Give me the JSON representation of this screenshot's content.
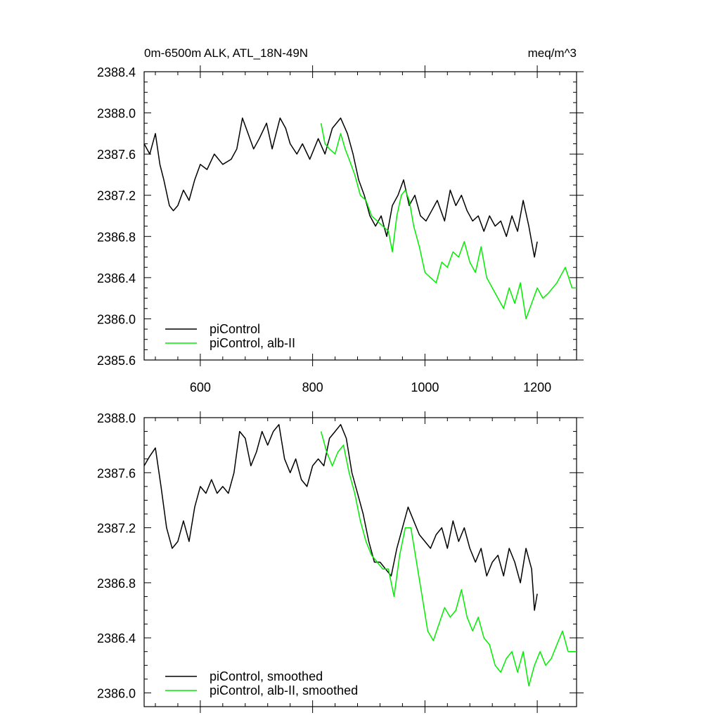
{
  "header": {
    "title": "0m-6500m ALK, ATL_18N-49N",
    "units": "meq/m^3"
  },
  "colors": {
    "piControl": "#000000",
    "alb_II": "#00ee00"
  },
  "chart_data": [
    {
      "type": "line",
      "xlim": [
        500,
        1270
      ],
      "ylim": [
        2385.6,
        2388.4
      ],
      "xticks": [
        600,
        800,
        1000,
        1200
      ],
      "yticks": [
        2385.6,
        2386.0,
        2386.4,
        2386.8,
        2387.2,
        2387.6,
        2388.0,
        2388.4
      ],
      "ytick_labels": [
        "2385.6",
        "2386.0",
        "2386.4",
        "2386.8",
        "2387.2",
        "2387.6",
        "2388.0",
        "2388.4"
      ],
      "xtick_labels": [
        "600",
        "800",
        "1000",
        "1200"
      ],
      "legend_position": "bottom-left",
      "grid": false,
      "series": [
        {
          "name": "piControl",
          "color": "#000000",
          "x": [
            500,
            510,
            520,
            528,
            535,
            545,
            552,
            560,
            570,
            580,
            590,
            600,
            612,
            625,
            640,
            655,
            665,
            675,
            685,
            695,
            705,
            718,
            728,
            742,
            752,
            760,
            772,
            782,
            795,
            810,
            822,
            835,
            850,
            862,
            872,
            882,
            892,
            902,
            912,
            922,
            932,
            942,
            952,
            962,
            972,
            982,
            992,
            1002,
            1012,
            1022,
            1035,
            1045,
            1055,
            1065,
            1075,
            1085,
            1095,
            1105,
            1115,
            1125,
            1135,
            1145,
            1155,
            1165,
            1175,
            1185,
            1195,
            1200
          ],
          "y": [
            2387.7,
            2387.6,
            2387.8,
            2387.5,
            2387.35,
            2387.1,
            2387.05,
            2387.1,
            2387.25,
            2387.15,
            2387.35,
            2387.5,
            2387.45,
            2387.6,
            2387.5,
            2387.55,
            2387.65,
            2387.95,
            2387.8,
            2387.65,
            2387.75,
            2387.9,
            2387.65,
            2387.95,
            2387.85,
            2387.7,
            2387.6,
            2387.7,
            2387.55,
            2387.75,
            2387.6,
            2387.85,
            2387.95,
            2387.8,
            2387.6,
            2387.35,
            2387.2,
            2387.0,
            2386.9,
            2387.0,
            2386.8,
            2387.1,
            2387.2,
            2387.35,
            2387.1,
            2387.2,
            2387.0,
            2386.95,
            2387.05,
            2387.15,
            2386.95,
            2387.25,
            2387.1,
            2387.2,
            2387.05,
            2386.95,
            2387.0,
            2386.85,
            2387.0,
            2386.9,
            2386.95,
            2386.8,
            2387.0,
            2386.85,
            2387.15,
            2386.9,
            2386.6,
            2386.75
          ]
        },
        {
          "name": "piControl, alb-II",
          "color": "#00ee00",
          "x": [
            815,
            822,
            830,
            840,
            850,
            858,
            865,
            875,
            885,
            895,
            905,
            915,
            925,
            935,
            942,
            950,
            958,
            965,
            972,
            980,
            990,
            1000,
            1010,
            1020,
            1030,
            1040,
            1050,
            1060,
            1070,
            1080,
            1090,
            1100,
            1110,
            1120,
            1130,
            1140,
            1150,
            1160,
            1170,
            1180,
            1190,
            1200,
            1210,
            1220,
            1235,
            1250,
            1262,
            1270
          ],
          "y": [
            2387.9,
            2387.7,
            2387.65,
            2387.6,
            2387.8,
            2387.65,
            2387.55,
            2387.4,
            2387.2,
            2387.15,
            2387.0,
            2386.95,
            2386.9,
            2386.85,
            2386.65,
            2387.0,
            2387.2,
            2387.25,
            2387.15,
            2386.9,
            2386.7,
            2386.45,
            2386.4,
            2386.35,
            2386.55,
            2386.5,
            2386.65,
            2386.6,
            2386.75,
            2386.55,
            2386.45,
            2386.7,
            2386.4,
            2386.3,
            2386.2,
            2386.1,
            2386.3,
            2386.15,
            2386.35,
            2386.0,
            2386.15,
            2386.3,
            2386.2,
            2386.25,
            2386.35,
            2386.5,
            2386.3,
            2386.3
          ]
        }
      ]
    },
    {
      "type": "line",
      "xlim": [
        500,
        1270
      ],
      "ylim": [
        2385.9,
        2388.0
      ],
      "xticks": [
        600,
        800,
        1000,
        1200
      ],
      "yticks": [
        2386.0,
        2386.4,
        2386.8,
        2387.2,
        2387.6,
        2388.0
      ],
      "ytick_labels": [
        "2386.0",
        "2386.4",
        "2386.8",
        "2387.2",
        "2387.6",
        "2388.0"
      ],
      "legend_position": "bottom-left",
      "grid": false,
      "series": [
        {
          "name": "piControl, smoothed",
          "color": "#000000",
          "x": [
            500,
            510,
            520,
            530,
            540,
            550,
            560,
            570,
            580,
            590,
            600,
            610,
            620,
            630,
            640,
            650,
            660,
            670,
            680,
            690,
            700,
            710,
            720,
            730,
            740,
            750,
            760,
            770,
            780,
            790,
            800,
            810,
            820,
            830,
            840,
            850,
            860,
            870,
            880,
            890,
            900,
            910,
            920,
            930,
            940,
            950,
            960,
            970,
            980,
            990,
            1000,
            1010,
            1020,
            1030,
            1040,
            1050,
            1060,
            1070,
            1080,
            1090,
            1100,
            1110,
            1120,
            1130,
            1140,
            1150,
            1160,
            1170,
            1180,
            1190,
            1195,
            1200
          ],
          "y": [
            2387.65,
            2387.72,
            2387.78,
            2387.5,
            2387.2,
            2387.05,
            2387.1,
            2387.25,
            2387.1,
            2387.35,
            2387.5,
            2387.45,
            2387.55,
            2387.45,
            2387.5,
            2387.45,
            2387.6,
            2387.9,
            2387.85,
            2387.65,
            2387.75,
            2387.9,
            2387.8,
            2387.9,
            2387.95,
            2387.7,
            2387.6,
            2387.7,
            2387.55,
            2387.5,
            2387.65,
            2387.7,
            2387.65,
            2387.85,
            2387.9,
            2387.95,
            2387.85,
            2387.6,
            2387.45,
            2387.3,
            2387.1,
            2386.95,
            2386.95,
            2386.9,
            2386.85,
            2387.05,
            2387.2,
            2387.35,
            2387.25,
            2387.15,
            2387.1,
            2387.05,
            2387.15,
            2387.2,
            2387.05,
            2387.25,
            2387.1,
            2387.2,
            2387.05,
            2386.95,
            2387.05,
            2386.85,
            2386.95,
            2387.0,
            2386.85,
            2387.05,
            2386.95,
            2386.8,
            2387.05,
            2386.9,
            2386.6,
            2386.72
          ]
        },
        {
          "name": "piControl, alb-II, smoothed",
          "color": "#00ee00",
          "x": [
            815,
            825,
            835,
            845,
            855,
            865,
            875,
            885,
            895,
            905,
            915,
            925,
            935,
            945,
            955,
            965,
            975,
            985,
            995,
            1005,
            1015,
            1025,
            1035,
            1045,
            1055,
            1065,
            1075,
            1085,
            1095,
            1105,
            1115,
            1125,
            1135,
            1145,
            1155,
            1165,
            1175,
            1185,
            1195,
            1205,
            1215,
            1225,
            1235,
            1245,
            1255,
            1265,
            1270
          ],
          "y": [
            2387.9,
            2387.75,
            2387.65,
            2387.75,
            2387.8,
            2387.6,
            2387.45,
            2387.25,
            2387.1,
            2387.0,
            2386.95,
            2386.9,
            2386.9,
            2386.7,
            2387.0,
            2387.2,
            2387.2,
            2386.95,
            2386.7,
            2386.45,
            2386.38,
            2386.5,
            2386.62,
            2386.55,
            2386.6,
            2386.75,
            2386.55,
            2386.45,
            2386.55,
            2386.4,
            2386.35,
            2386.2,
            2386.15,
            2386.25,
            2386.3,
            2386.15,
            2386.3,
            2386.05,
            2386.2,
            2386.3,
            2386.2,
            2386.25,
            2386.35,
            2386.45,
            2386.3,
            2386.3,
            2386.3
          ]
        }
      ]
    }
  ]
}
